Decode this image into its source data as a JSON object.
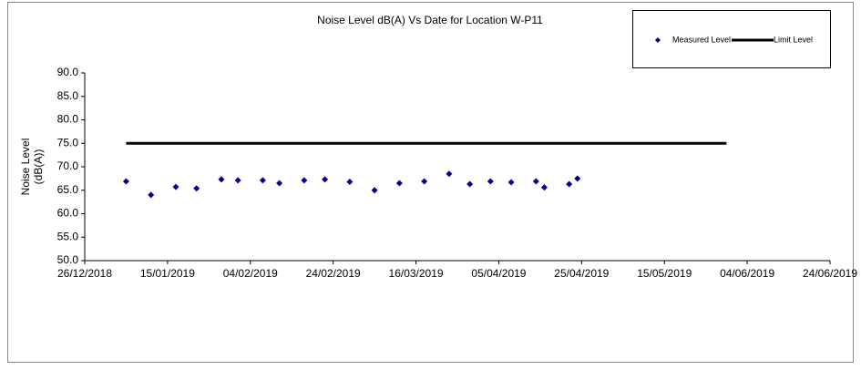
{
  "chart_data": {
    "type": "scatter",
    "title": "Noise Level dB(A) Vs Date for Location W-P11",
    "y_label": "Noise Level (dB(A))",
    "series": [
      {
        "name": "Measured Level",
        "type": "scatter",
        "color": "#00008b",
        "x": [
          "05/01/2019",
          "11/01/2019",
          "17/01/2019",
          "22/01/2019",
          "28/01/2019",
          "01/02/2019",
          "07/02/2019",
          "11/02/2019",
          "17/02/2019",
          "22/02/2019",
          "28/02/2019",
          "06/03/2019",
          "12/03/2019",
          "18/03/2019",
          "24/03/2019",
          "29/03/2019",
          "03/04/2019",
          "08/04/2019",
          "14/04/2019",
          "16/04/2019",
          "22/04/2019",
          "24/04/2019"
        ],
        "values": [
          66.9,
          64.0,
          65.7,
          65.4,
          67.3,
          67.1,
          67.1,
          66.5,
          67.1,
          67.3,
          66.8,
          65.0,
          66.5,
          66.9,
          68.5,
          66.3,
          66.9,
          66.7,
          66.9,
          65.6,
          66.3,
          67.5
        ]
      },
      {
        "name": "Limit Level",
        "type": "line",
        "color": "#000000",
        "x": [
          "05/01/2019",
          "30/05/2019"
        ],
        "values": [
          75,
          75
        ]
      }
    ],
    "xlim": [
      "26/12/2018",
      "24/06/2019"
    ],
    "xticks": [
      "26/12/2018",
      "15/01/2019",
      "04/02/2019",
      "24/02/2019",
      "16/03/2019",
      "05/04/2019",
      "25/04/2019",
      "15/05/2019",
      "04/06/2019",
      "24/06/2019"
    ],
    "ylim": [
      50,
      90
    ],
    "yticks": [
      {
        "value": 50,
        "label": "50.0"
      },
      {
        "value": 55,
        "label": "55.0"
      },
      {
        "value": 60,
        "label": "60.0"
      },
      {
        "value": 65,
        "label": "65.0"
      },
      {
        "value": 70,
        "label": "70.0"
      },
      {
        "value": 75,
        "label": "75.0"
      },
      {
        "value": 80,
        "label": "80.0"
      },
      {
        "value": 85,
        "label": "85.0"
      },
      {
        "value": 90,
        "label": "90.0"
      }
    ],
    "grid": false,
    "legend": "top-right"
  }
}
